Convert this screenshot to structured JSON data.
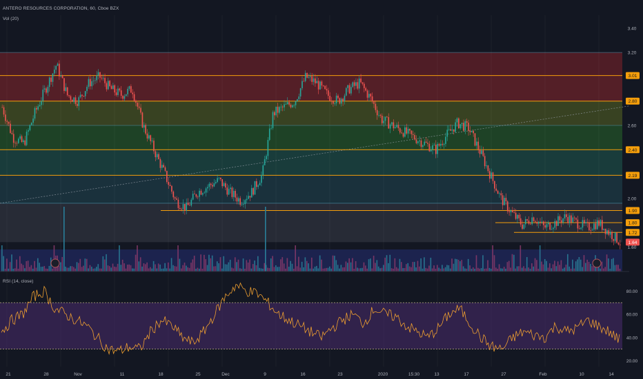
{
  "header": {
    "symbol": "ANTERO RESOURCES CORPORATION, 60, Cboe BZX",
    "volume_indicator": "Vol (20)",
    "rsi_indicator": "RSI (14, close)"
  },
  "colors": {
    "background": "#131722",
    "candle_up": "#26a69a",
    "candle_down": "#ef5350",
    "level_line": "#f59e0b",
    "current_price": "#ef5350",
    "rsi_line": "#f0a030",
    "rsi_band": "#4a2c6e"
  },
  "chart_data": [
    {
      "type": "candlestick",
      "panel": "price",
      "y_ticks": [
        "3.40",
        "3.20",
        "2.60",
        "2.00",
        "1.60"
      ],
      "ylim": [
        1.58,
        3.45
      ],
      "fib_levels": [
        {
          "label": "3.01",
          "value": 3.01
        },
        {
          "label": "2.80",
          "value": 2.8
        },
        {
          "label": "2.40",
          "value": 2.4
        },
        {
          "label": "2.19",
          "value": 2.19
        },
        {
          "label": "1.90",
          "value": 1.9
        },
        {
          "label": "1.80",
          "value": 1.8
        },
        {
          "label": "1.72",
          "value": 1.72
        }
      ],
      "current_price": {
        "label": "1.64",
        "value": 1.64
      },
      "x_tick_labels": [
        "21",
        "28",
        "Nov",
        "11",
        "18",
        "25",
        "Dec",
        "9",
        "16",
        "23",
        "2020",
        "15:30",
        "13",
        "17",
        "27",
        "Feb",
        "10",
        "14"
      ],
      "price_path": [
        2.75,
        2.5,
        2.45,
        2.7,
        2.9,
        3.1,
        2.85,
        2.8,
        2.95,
        3.0,
        2.9,
        2.85,
        2.9,
        2.6,
        2.4,
        2.2,
        1.98,
        1.92,
        2.05,
        2.1,
        2.15,
        2.05,
        1.98,
        2.05,
        2.2,
        2.7,
        2.75,
        2.8,
        3.0,
        2.95,
        2.85,
        2.8,
        2.9,
        2.95,
        2.82,
        2.65,
        2.6,
        2.55,
        2.5,
        2.45,
        2.4,
        2.52,
        2.62,
        2.58,
        2.4,
        2.2,
        2.0,
        1.88,
        1.78,
        1.85,
        1.76,
        1.8,
        1.85,
        1.8,
        1.76,
        1.8,
        1.72,
        1.64
      ]
    },
    {
      "type": "bar",
      "panel": "volume",
      "name": "Vol (20)"
    },
    {
      "type": "line",
      "panel": "rsi",
      "y_ticks": [
        "80.00",
        "60.00",
        "40.00",
        "20.00"
      ],
      "ylim": [
        15,
        95
      ],
      "bands": {
        "upper": 70,
        "lower": 30
      },
      "rsi_path": [
        45,
        55,
        60,
        75,
        80,
        65,
        60,
        55,
        50,
        40,
        30,
        28,
        32,
        30,
        45,
        55,
        50,
        40,
        35,
        45,
        60,
        75,
        85,
        80,
        78,
        70,
        60,
        55,
        50,
        45,
        40,
        48,
        55,
        60,
        52,
        65,
        60,
        58,
        50,
        45,
        40,
        48,
        60,
        65,
        52,
        40,
        32,
        30,
        40,
        45,
        42,
        40,
        50,
        45,
        48,
        55,
        50,
        45,
        38
      ]
    }
  ]
}
